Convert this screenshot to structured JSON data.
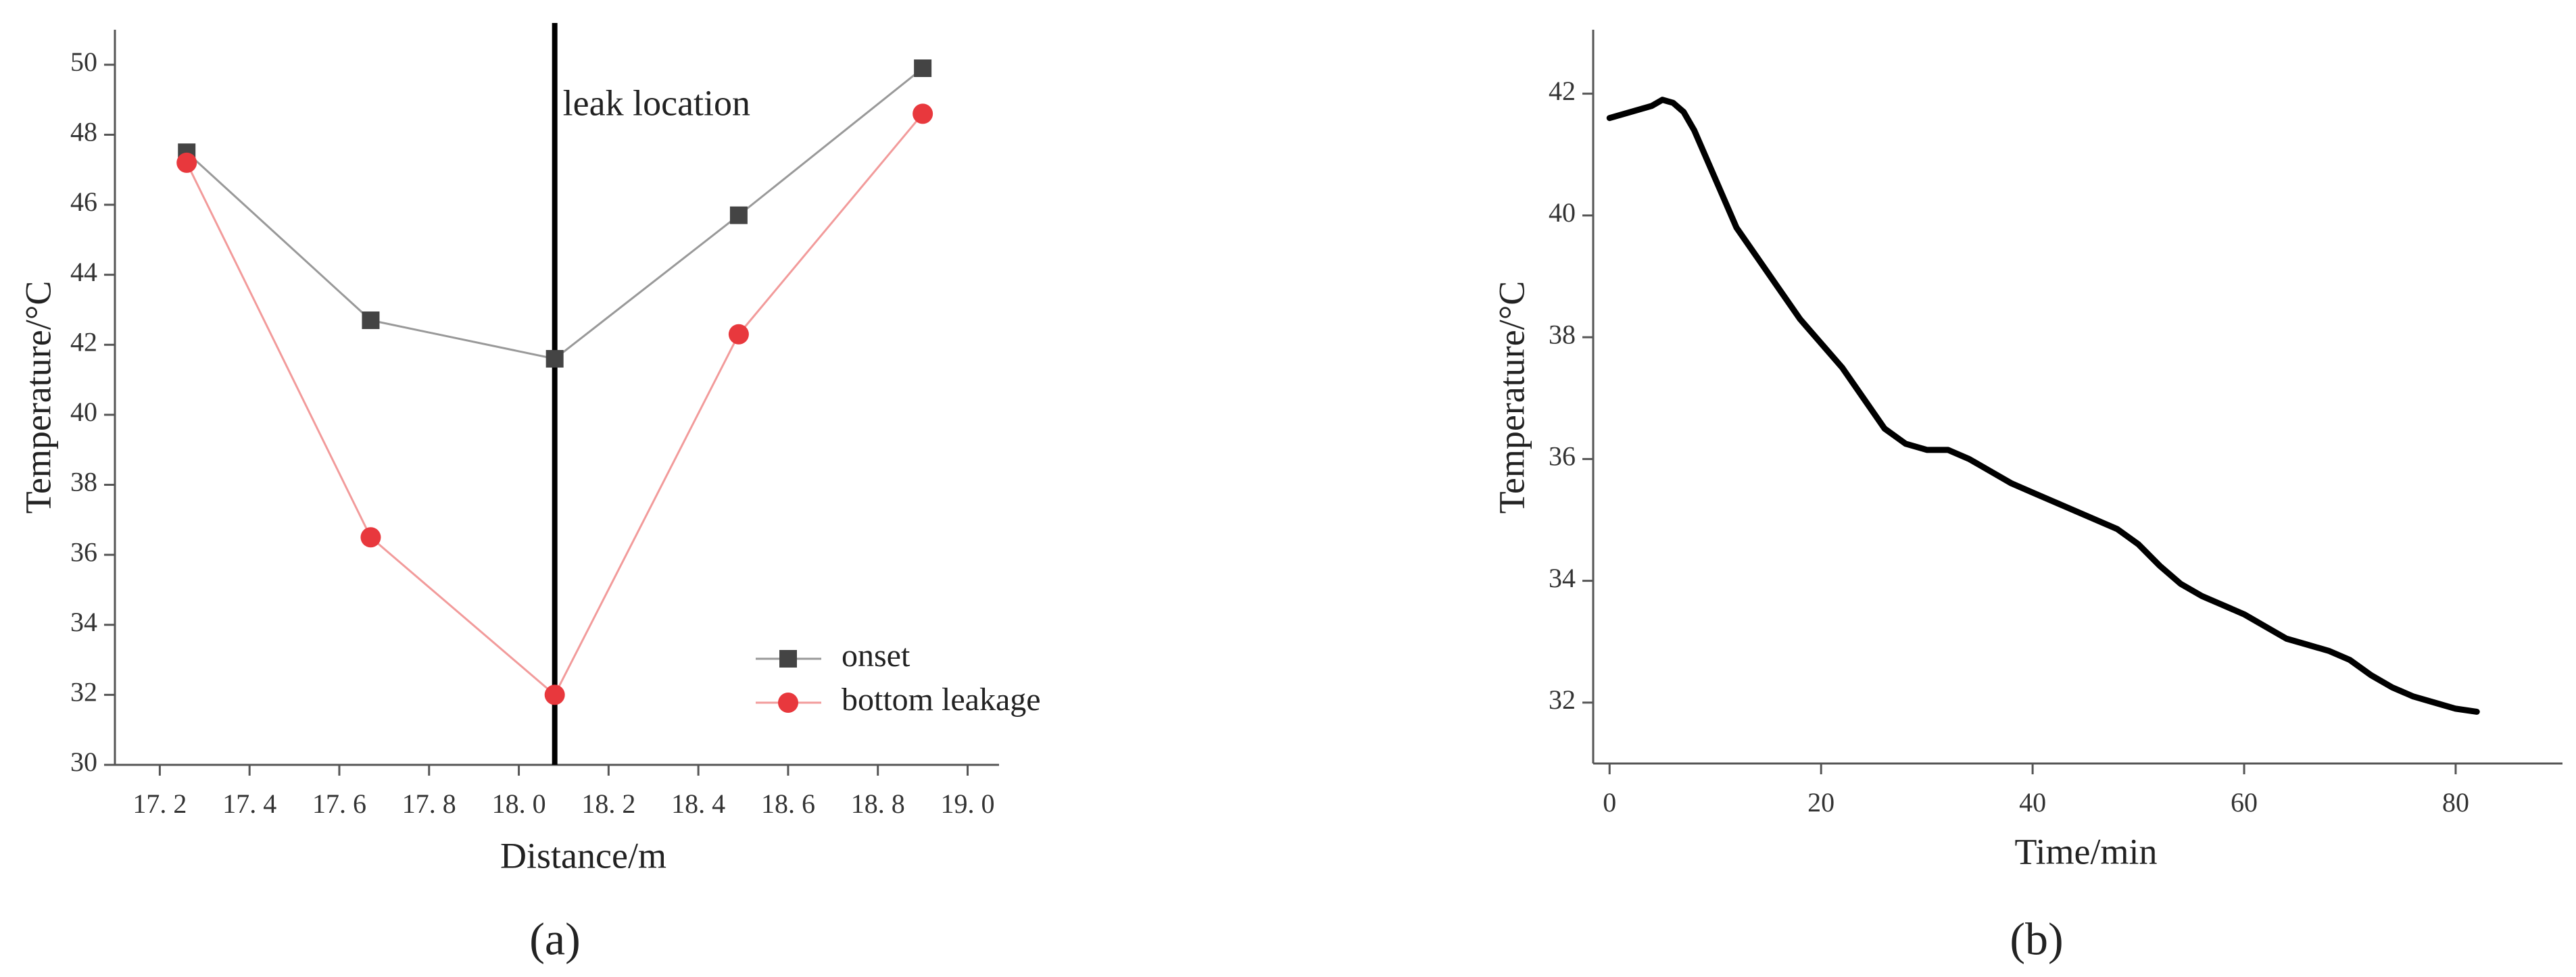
{
  "chart_data": [
    {
      "type": "line",
      "panel_label": "(a)",
      "xlabel": "Distance/m",
      "ylabel": "Temperature/°C",
      "x": [
        17.26,
        17.67,
        18.08,
        18.49,
        18.9
      ],
      "series": [
        {
          "name": "onset",
          "color": "#444444",
          "line_color": "#999999",
          "marker": "square",
          "values": [
            47.5,
            42.7,
            41.6,
            45.7,
            49.9
          ]
        },
        {
          "name": "bottom leakage",
          "color": "#e8383d",
          "line_color": "#f29b9b",
          "marker": "circle",
          "values": [
            47.2,
            36.5,
            32.0,
            42.3,
            48.6
          ]
        }
      ],
      "vline": 18.08,
      "annotation": "leak location",
      "xlim": [
        17.1,
        19.07
      ],
      "ylim": [
        30,
        51
      ],
      "xticks": [
        {
          "value": 17.2,
          "label": "17. 2"
        },
        {
          "value": 17.4,
          "label": "17. 4"
        },
        {
          "value": 17.6,
          "label": "17. 6"
        },
        {
          "value": 17.8,
          "label": "17. 8"
        },
        {
          "value": 18.0,
          "label": "18. 0"
        },
        {
          "value": 18.2,
          "label": "18. 2"
        },
        {
          "value": 18.4,
          "label": "18. 4"
        },
        {
          "value": 18.6,
          "label": "18. 6"
        },
        {
          "value": 18.8,
          "label": "18. 8"
        },
        {
          "value": 19.0,
          "label": "19. 0"
        }
      ],
      "yticks": [
        30,
        32,
        34,
        36,
        38,
        40,
        42,
        44,
        46,
        48,
        50
      ],
      "legend": "lower right"
    },
    {
      "type": "line",
      "panel_label": "(b)",
      "xlabel": "Time/min",
      "ylabel": "Temperature/°C",
      "x": [
        0,
        2,
        4,
        5,
        6,
        7,
        8,
        10,
        12,
        14,
        16,
        18,
        20,
        22,
        24,
        26,
        28,
        30,
        32,
        34,
        36,
        38,
        40,
        42,
        44,
        46,
        48,
        50,
        52,
        54,
        56,
        58,
        60,
        62,
        64,
        66,
        68,
        70,
        72,
        74,
        76,
        78,
        80,
        82
      ],
      "series": [
        {
          "color": "#000000",
          "values": [
            41.6,
            41.7,
            41.8,
            41.9,
            41.85,
            41.7,
            41.4,
            40.6,
            39.8,
            39.3,
            38.8,
            38.3,
            37.9,
            37.5,
            37.0,
            36.5,
            36.25,
            36.15,
            36.15,
            36.0,
            35.8,
            35.6,
            35.45,
            35.3,
            35.15,
            35.0,
            34.85,
            34.6,
            34.25,
            33.95,
            33.75,
            33.6,
            33.45,
            33.25,
            33.05,
            32.95,
            32.85,
            32.7,
            32.45,
            32.25,
            32.1,
            32.0,
            31.9,
            31.85
          ]
        }
      ],
      "xlim": [
        -1.55,
        90.1
      ],
      "ylim": [
        31,
        43.05
      ],
      "xticks": [
        0,
        20,
        40,
        60,
        80
      ],
      "yticks": [
        32,
        34,
        36,
        38,
        40,
        42
      ]
    }
  ]
}
